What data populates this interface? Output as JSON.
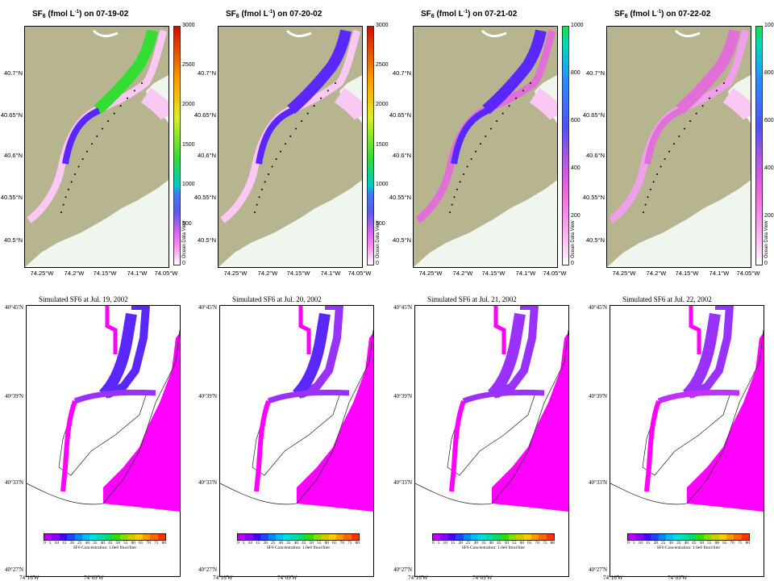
{
  "odv_panels": [
    {
      "title_pre": "SF",
      "title_sub": "6",
      "title_mid": " (fmol  L",
      "title_sup": "-1",
      "title_post": ") on 07-19-02",
      "cbar_ticks": [
        "3000",
        "2500",
        "2000",
        "1500",
        "1000",
        "500",
        "0"
      ],
      "cbar_scheme": "high"
    },
    {
      "title_pre": "SF",
      "title_sub": "6",
      "title_mid": " (fmol  L",
      "title_sup": "-1",
      "title_post": ") on 07-20-02",
      "cbar_ticks": [
        "3000",
        "2500",
        "2000",
        "1500",
        "1000",
        "500",
        "0"
      ],
      "cbar_scheme": "high"
    },
    {
      "title_pre": "SF",
      "title_sub": "6",
      "title_mid": " (fmol  L",
      "title_sup": "-1",
      "title_post": ") on 07-21-02",
      "cbar_ticks": [
        "1000",
        "800",
        "600",
        "400",
        "200",
        "0"
      ],
      "cbar_scheme": "low"
    },
    {
      "title_pre": "SF",
      "title_sub": "6",
      "title_mid": " (fmol  L",
      "title_sup": "-1",
      "title_post": ") on 07-22-02",
      "cbar_ticks": [
        "1000",
        "800",
        "600",
        "400",
        "200",
        "0"
      ],
      "cbar_scheme": "low"
    }
  ],
  "odv_lat_labels": [
    "40.7°N",
    "40.65°N",
    "40.6°N",
    "40.55°N",
    "40.5°N"
  ],
  "odv_lon_labels": [
    "74.25°W",
    "74.2°W",
    "74.15°W",
    "74.1°W",
    "74.05°W"
  ],
  "odv_watermark": "Ocean Data View",
  "sim_panels": [
    {
      "title": "Simulated SF6 at Jul. 19, 2002"
    },
    {
      "title": "Simulated SF6 at Jul. 20, 2002"
    },
    {
      "title": "Simulated SF6 at Jul. 21, 2002"
    },
    {
      "title": "Simulated SF6 at Jul. 22, 2002"
    }
  ],
  "sim_lat_labels": [
    "40°45'N",
    "40°39'N",
    "40°33'N",
    "40°27'N"
  ],
  "sim_lon_labels": [
    "74°16'W",
    "74°09'W"
  ],
  "sim_legend_ticks": [
    "0",
    "5",
    "10",
    "15",
    "20",
    "25",
    "30",
    "35",
    "40",
    "45",
    "50",
    "55",
    "60",
    "65",
    "70",
    "75",
    "80"
  ],
  "sim_legend_caption": "SF6 Concentration: 1.0e6 fmol/liter",
  "colors": {
    "land": "#b6b58f",
    "water": "#eef6ee",
    "magenta": "#ff00ff",
    "violet": "#9a32ff",
    "blue": "#5a28ff",
    "green": "#33dd33",
    "pink": "#f9c8f3"
  }
}
